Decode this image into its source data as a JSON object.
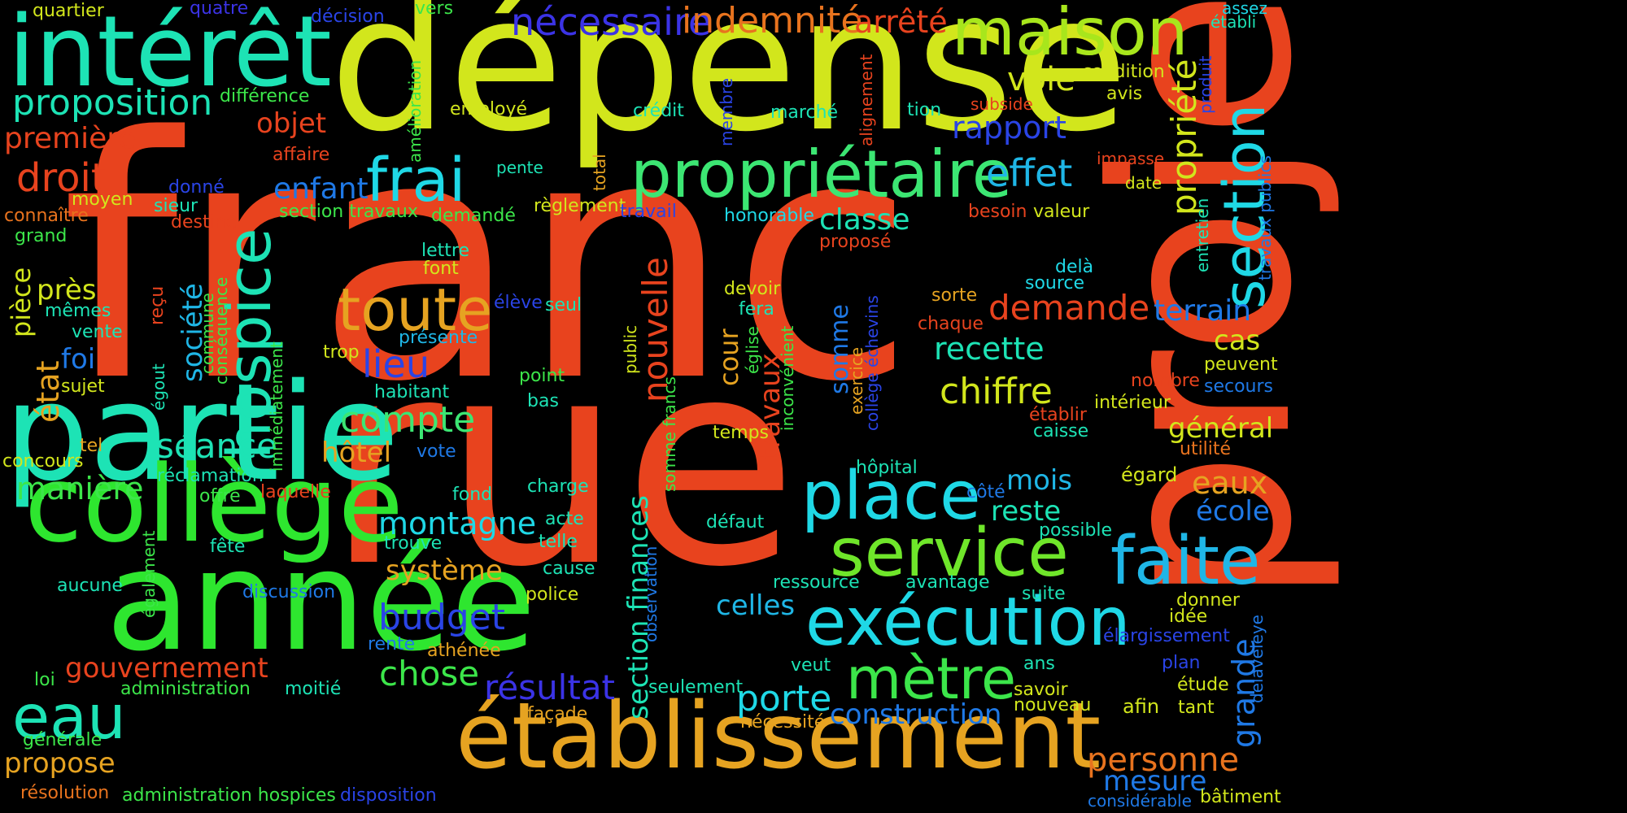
{
  "words": [
    {
      "text": "franc",
      "color": "#e8431e"
    },
    {
      "text": "rue",
      "color": "#e8431e"
    },
    {
      "text": "dépense",
      "color": "#d2e61c"
    },
    {
      "text": "projet",
      "color": "#e8431e"
    },
    {
      "text": "année",
      "color": "#2ee62f"
    },
    {
      "text": "partie",
      "color": "#1de3b5"
    },
    {
      "text": "intérêt",
      "color": "#1de3b5"
    },
    {
      "text": "collège",
      "color": "#2ee62f"
    },
    {
      "text": "établissement",
      "color": "#e6a321"
    },
    {
      "text": "propriétaire",
      "color": "#3ce673"
    },
    {
      "text": "maison",
      "color": "#a8e61c"
    },
    {
      "text": "exécution",
      "color": "#1fd8e6"
    },
    {
      "text": "place",
      "color": "#1fd8e6"
    },
    {
      "text": "service",
      "color": "#6fe62a"
    },
    {
      "text": "faite",
      "color": "#1fb6e6"
    },
    {
      "text": "section",
      "color": "#1fd8e6"
    },
    {
      "text": "hospice",
      "color": "#1de3b5"
    },
    {
      "text": "mètre",
      "color": "#3ce64a"
    },
    {
      "text": "eau",
      "color": "#1de3b5"
    },
    {
      "text": "toute",
      "color": "#e6a321"
    },
    {
      "text": "frai",
      "color": "#1fd8e6"
    },
    {
      "text": "nécessaire",
      "color": "#3b33e6"
    },
    {
      "text": "indemnité",
      "color": "#e8731e"
    },
    {
      "text": "arrêté",
      "color": "#e8431e"
    },
    {
      "text": "proposition",
      "color": "#1de3b5"
    },
    {
      "text": "première",
      "color": "#e8431e"
    },
    {
      "text": "droit",
      "color": "#e8431e"
    },
    {
      "text": "voie",
      "color": "#d2e61c"
    },
    {
      "text": "rapport",
      "color": "#2a44e6"
    },
    {
      "text": "objet",
      "color": "#e8431e"
    },
    {
      "text": "effet",
      "color": "#1fb6e6"
    },
    {
      "text": "enfant",
      "color": "#1f79e6"
    },
    {
      "text": "propriété",
      "color": "#d2e61c"
    },
    {
      "text": "classe",
      "color": "#1de3b5"
    },
    {
      "text": "demande",
      "color": "#e8431e"
    },
    {
      "text": "terrain",
      "color": "#1f79e6"
    },
    {
      "text": "recette",
      "color": "#1de3b5"
    },
    {
      "text": "chiffre",
      "color": "#d2e61c"
    },
    {
      "text": "lieu",
      "color": "#2a44e6"
    },
    {
      "text": "compte",
      "color": "#3ce673"
    },
    {
      "text": "séance",
      "color": "#1de3b5"
    },
    {
      "text": "nouvelle",
      "color": "#e8431e"
    },
    {
      "text": "hôtel",
      "color": "#e6a321"
    },
    {
      "text": "manière",
      "color": "#3ce64a"
    },
    {
      "text": "montagne",
      "color": "#1fd8e6"
    },
    {
      "text": "système",
      "color": "#e6a321"
    },
    {
      "text": "budget",
      "color": "#2a44e6"
    },
    {
      "text": "chose",
      "color": "#3ce64a"
    },
    {
      "text": "résultat",
      "color": "#3b33e6"
    },
    {
      "text": "gouvernement",
      "color": "#e8431e"
    },
    {
      "text": "porte",
      "color": "#1fd8e6"
    },
    {
      "text": "construction",
      "color": "#1f79e6"
    },
    {
      "text": "personne",
      "color": "#e8731e"
    },
    {
      "text": "mesure",
      "color": "#1f79e6"
    },
    {
      "text": "propose",
      "color": "#e6a321"
    },
    {
      "text": "grande",
      "color": "#1f79e6"
    },
    {
      "text": "eaux",
      "color": "#e6a321"
    },
    {
      "text": "école",
      "color": "#1f79e6"
    },
    {
      "text": "général",
      "color": "#d2e61c"
    },
    {
      "text": "cas",
      "color": "#d2e61c"
    },
    {
      "text": "mois",
      "color": "#1fb6e6"
    },
    {
      "text": "reste",
      "color": "#1de3b5"
    },
    {
      "text": "celles",
      "color": "#1fb6e6"
    },
    {
      "text": "état",
      "color": "#e6a321"
    },
    {
      "text": "foi",
      "color": "#1f79e6"
    },
    {
      "text": "près",
      "color": "#d2e61c"
    },
    {
      "text": "pièce",
      "color": "#d2e61c"
    },
    {
      "text": "société",
      "color": "#1fb6e6"
    },
    {
      "text": "cour",
      "color": "#e6a321"
    },
    {
      "text": "travaux",
      "color": "#e8431e"
    },
    {
      "text": "section finances",
      "color": "#1de3b5"
    },
    {
      "text": "somme",
      "color": "#1f79e6"
    },
    {
      "text": "quartier",
      "color": "#d2e61c"
    },
    {
      "text": "quatre",
      "color": "#3b33e6"
    },
    {
      "text": "décision",
      "color": "#2a44e6"
    },
    {
      "text": "vers",
      "color": "#3ce64a"
    },
    {
      "text": "différence",
      "color": "#3ce64a"
    },
    {
      "text": "amélioration",
      "color": "#3ce64a"
    },
    {
      "text": "employé",
      "color": "#d2e61c"
    },
    {
      "text": "crédit",
      "color": "#1de3b5"
    },
    {
      "text": "membre",
      "color": "#2a44e6"
    },
    {
      "text": "marché",
      "color": "#1de3b5"
    },
    {
      "text": "alignement",
      "color": "#e8431e"
    },
    {
      "text": "tion",
      "color": "#1de3b5"
    },
    {
      "text": "subside",
      "color": "#e8431e"
    },
    {
      "text": "condition",
      "color": "#d2e61c"
    },
    {
      "text": "avis",
      "color": "#d2e61c"
    },
    {
      "text": "établi",
      "color": "#1de3b5"
    },
    {
      "text": "assez",
      "color": "#1fd8e6"
    },
    {
      "text": "produit",
      "color": "#2a44e6"
    },
    {
      "text": "affaire",
      "color": "#e8431e"
    },
    {
      "text": "pente",
      "color": "#1de3b5"
    },
    {
      "text": "total",
      "color": "#e6a321"
    },
    {
      "text": "impasse",
      "color": "#e8431e"
    },
    {
      "text": "date",
      "color": "#d2e61c"
    },
    {
      "text": "entretien",
      "color": "#1de3b5"
    },
    {
      "text": "travaux publics",
      "color": "#1f79e6"
    },
    {
      "text": "moyen",
      "color": "#d2e61c"
    },
    {
      "text": "donné",
      "color": "#2a44e6"
    },
    {
      "text": "sieur",
      "color": "#1de3b5"
    },
    {
      "text": "connaître",
      "color": "#e8731e"
    },
    {
      "text": "destiné",
      "color": "#e8431e"
    },
    {
      "text": "grand",
      "color": "#3ce64a"
    },
    {
      "text": "section travaux",
      "color": "#3ce64a"
    },
    {
      "text": "demandé",
      "color": "#3ce64a"
    },
    {
      "text": "règlement",
      "color": "#d2e61c"
    },
    {
      "text": "travail",
      "color": "#2a44e6"
    },
    {
      "text": "honorable",
      "color": "#1fd8e6"
    },
    {
      "text": "besoin",
      "color": "#e8431e"
    },
    {
      "text": "valeur",
      "color": "#d2e61c"
    },
    {
      "text": "proposé",
      "color": "#e8431e"
    },
    {
      "text": "lettre",
      "color": "#1de3b5"
    },
    {
      "text": "font",
      "color": "#d2e61c"
    },
    {
      "text": "delà",
      "color": "#1fd8e6"
    },
    {
      "text": "source",
      "color": "#1fd8e6"
    },
    {
      "text": "devoir",
      "color": "#d2e61c"
    },
    {
      "text": "fera",
      "color": "#1de3b5"
    },
    {
      "text": "sorte",
      "color": "#e6a321"
    },
    {
      "text": "chaque",
      "color": "#e8431e"
    },
    {
      "text": "élève",
      "color": "#2a44e6"
    },
    {
      "text": "seul",
      "color": "#1de3b5"
    },
    {
      "text": "reçu",
      "color": "#e8431e"
    },
    {
      "text": "mêmes",
      "color": "#1de3b5"
    },
    {
      "text": "vente",
      "color": "#1de3b5"
    },
    {
      "text": "présente",
      "color": "#1fb6e6"
    },
    {
      "text": "conséquence",
      "color": "#3ce64a"
    },
    {
      "text": "commune",
      "color": "#3ce64a"
    },
    {
      "text": "public",
      "color": "#d2e61c"
    },
    {
      "text": "église",
      "color": "#3ce64a"
    },
    {
      "text": "inconvénient",
      "color": "#3ce64a"
    },
    {
      "text": "collège échevins",
      "color": "#2a44e6"
    },
    {
      "text": "exercice",
      "color": "#e6a321"
    },
    {
      "text": "peuvent",
      "color": "#d2e61c"
    },
    {
      "text": "secours",
      "color": "#1f79e6"
    },
    {
      "text": "nombre",
      "color": "#e8431e"
    },
    {
      "text": "intérieur",
      "color": "#d2e61c"
    },
    {
      "text": "trop",
      "color": "#d2e61c"
    },
    {
      "text": "immédiatement",
      "color": "#3ce64a"
    },
    {
      "text": "sujet",
      "color": "#d2e61c"
    },
    {
      "text": "égout",
      "color": "#1de3b5"
    },
    {
      "text": "habitant",
      "color": "#1de3b5"
    },
    {
      "text": "point",
      "color": "#3ce64a"
    },
    {
      "text": "bas",
      "color": "#1de3b5"
    },
    {
      "text": "somme francs",
      "color": "#3ce64a"
    },
    {
      "text": "établir",
      "color": "#e8431e"
    },
    {
      "text": "caisse",
      "color": "#1de3b5"
    },
    {
      "text": "utilité",
      "color": "#e8731e"
    },
    {
      "text": "temps",
      "color": "#d2e61c"
    },
    {
      "text": "tel",
      "color": "#e6a321"
    },
    {
      "text": "concours",
      "color": "#d2e61c"
    },
    {
      "text": "vote",
      "color": "#1f79e6"
    },
    {
      "text": "réclamation",
      "color": "#1de3b5"
    },
    {
      "text": "hôpital",
      "color": "#1de3b5"
    },
    {
      "text": "égard",
      "color": "#d2e61c"
    },
    {
      "text": "laquelle",
      "color": "#e8431e"
    },
    {
      "text": "offre",
      "color": "#3ce64a"
    },
    {
      "text": "fond",
      "color": "#1de3b5"
    },
    {
      "text": "charge",
      "color": "#1de3b5"
    },
    {
      "text": "côté",
      "color": "#1f79e6"
    },
    {
      "text": "acte",
      "color": "#1de3b5"
    },
    {
      "text": "défaut",
      "color": "#1de3b5"
    },
    {
      "text": "fête",
      "color": "#1de3b5"
    },
    {
      "text": "trouve",
      "color": "#1de3b5"
    },
    {
      "text": "telle",
      "color": "#1de3b5"
    },
    {
      "text": "possible",
      "color": "#1de3b5"
    },
    {
      "text": "également",
      "color": "#3ce64a"
    },
    {
      "text": "aucune",
      "color": "#1de3b5"
    },
    {
      "text": "discussion",
      "color": "#1f79e6"
    },
    {
      "text": "cause",
      "color": "#1de3b5"
    },
    {
      "text": "police",
      "color": "#d2e61c"
    },
    {
      "text": "observation",
      "color": "#1f79e6"
    },
    {
      "text": "ressource",
      "color": "#1de3b5"
    },
    {
      "text": "avantage",
      "color": "#1de3b5"
    },
    {
      "text": "suite",
      "color": "#1de3b5"
    },
    {
      "text": "donner",
      "color": "#d2e61c"
    },
    {
      "text": "idée",
      "color": "#d2e61c"
    },
    {
      "text": "delaveleye",
      "color": "#1f79e6"
    },
    {
      "text": "élargissement",
      "color": "#2a44e6"
    },
    {
      "text": "rente",
      "color": "#1f79e6"
    },
    {
      "text": "athénée",
      "color": "#e6a321"
    },
    {
      "text": "plan",
      "color": "#2a44e6"
    },
    {
      "text": "loi",
      "color": "#3ce64a"
    },
    {
      "text": "administration",
      "color": "#3ce64a"
    },
    {
      "text": "moitié",
      "color": "#1de3b5"
    },
    {
      "text": "seulement",
      "color": "#1de3b5"
    },
    {
      "text": "veut",
      "color": "#1de3b5"
    },
    {
      "text": "ans",
      "color": "#1de3b5"
    },
    {
      "text": "étude",
      "color": "#d2e61c"
    },
    {
      "text": "savoir",
      "color": "#d2e61c"
    },
    {
      "text": "façade",
      "color": "#e6a321"
    },
    {
      "text": "nécessité",
      "color": "#e6a321"
    },
    {
      "text": "nouveau",
      "color": "#d2e61c"
    },
    {
      "text": "afin",
      "color": "#d2e61c"
    },
    {
      "text": "tant",
      "color": "#d2e61c"
    },
    {
      "text": "générale",
      "color": "#3ce64a"
    },
    {
      "text": "résolution",
      "color": "#e8731e"
    },
    {
      "text": "administration hospices",
      "color": "#3ce64a"
    },
    {
      "text": "disposition",
      "color": "#2a44e6"
    },
    {
      "text": "considérable",
      "color": "#1f79e6"
    },
    {
      "text": "bâtiment",
      "color": "#d2e61c"
    }
  ]
}
